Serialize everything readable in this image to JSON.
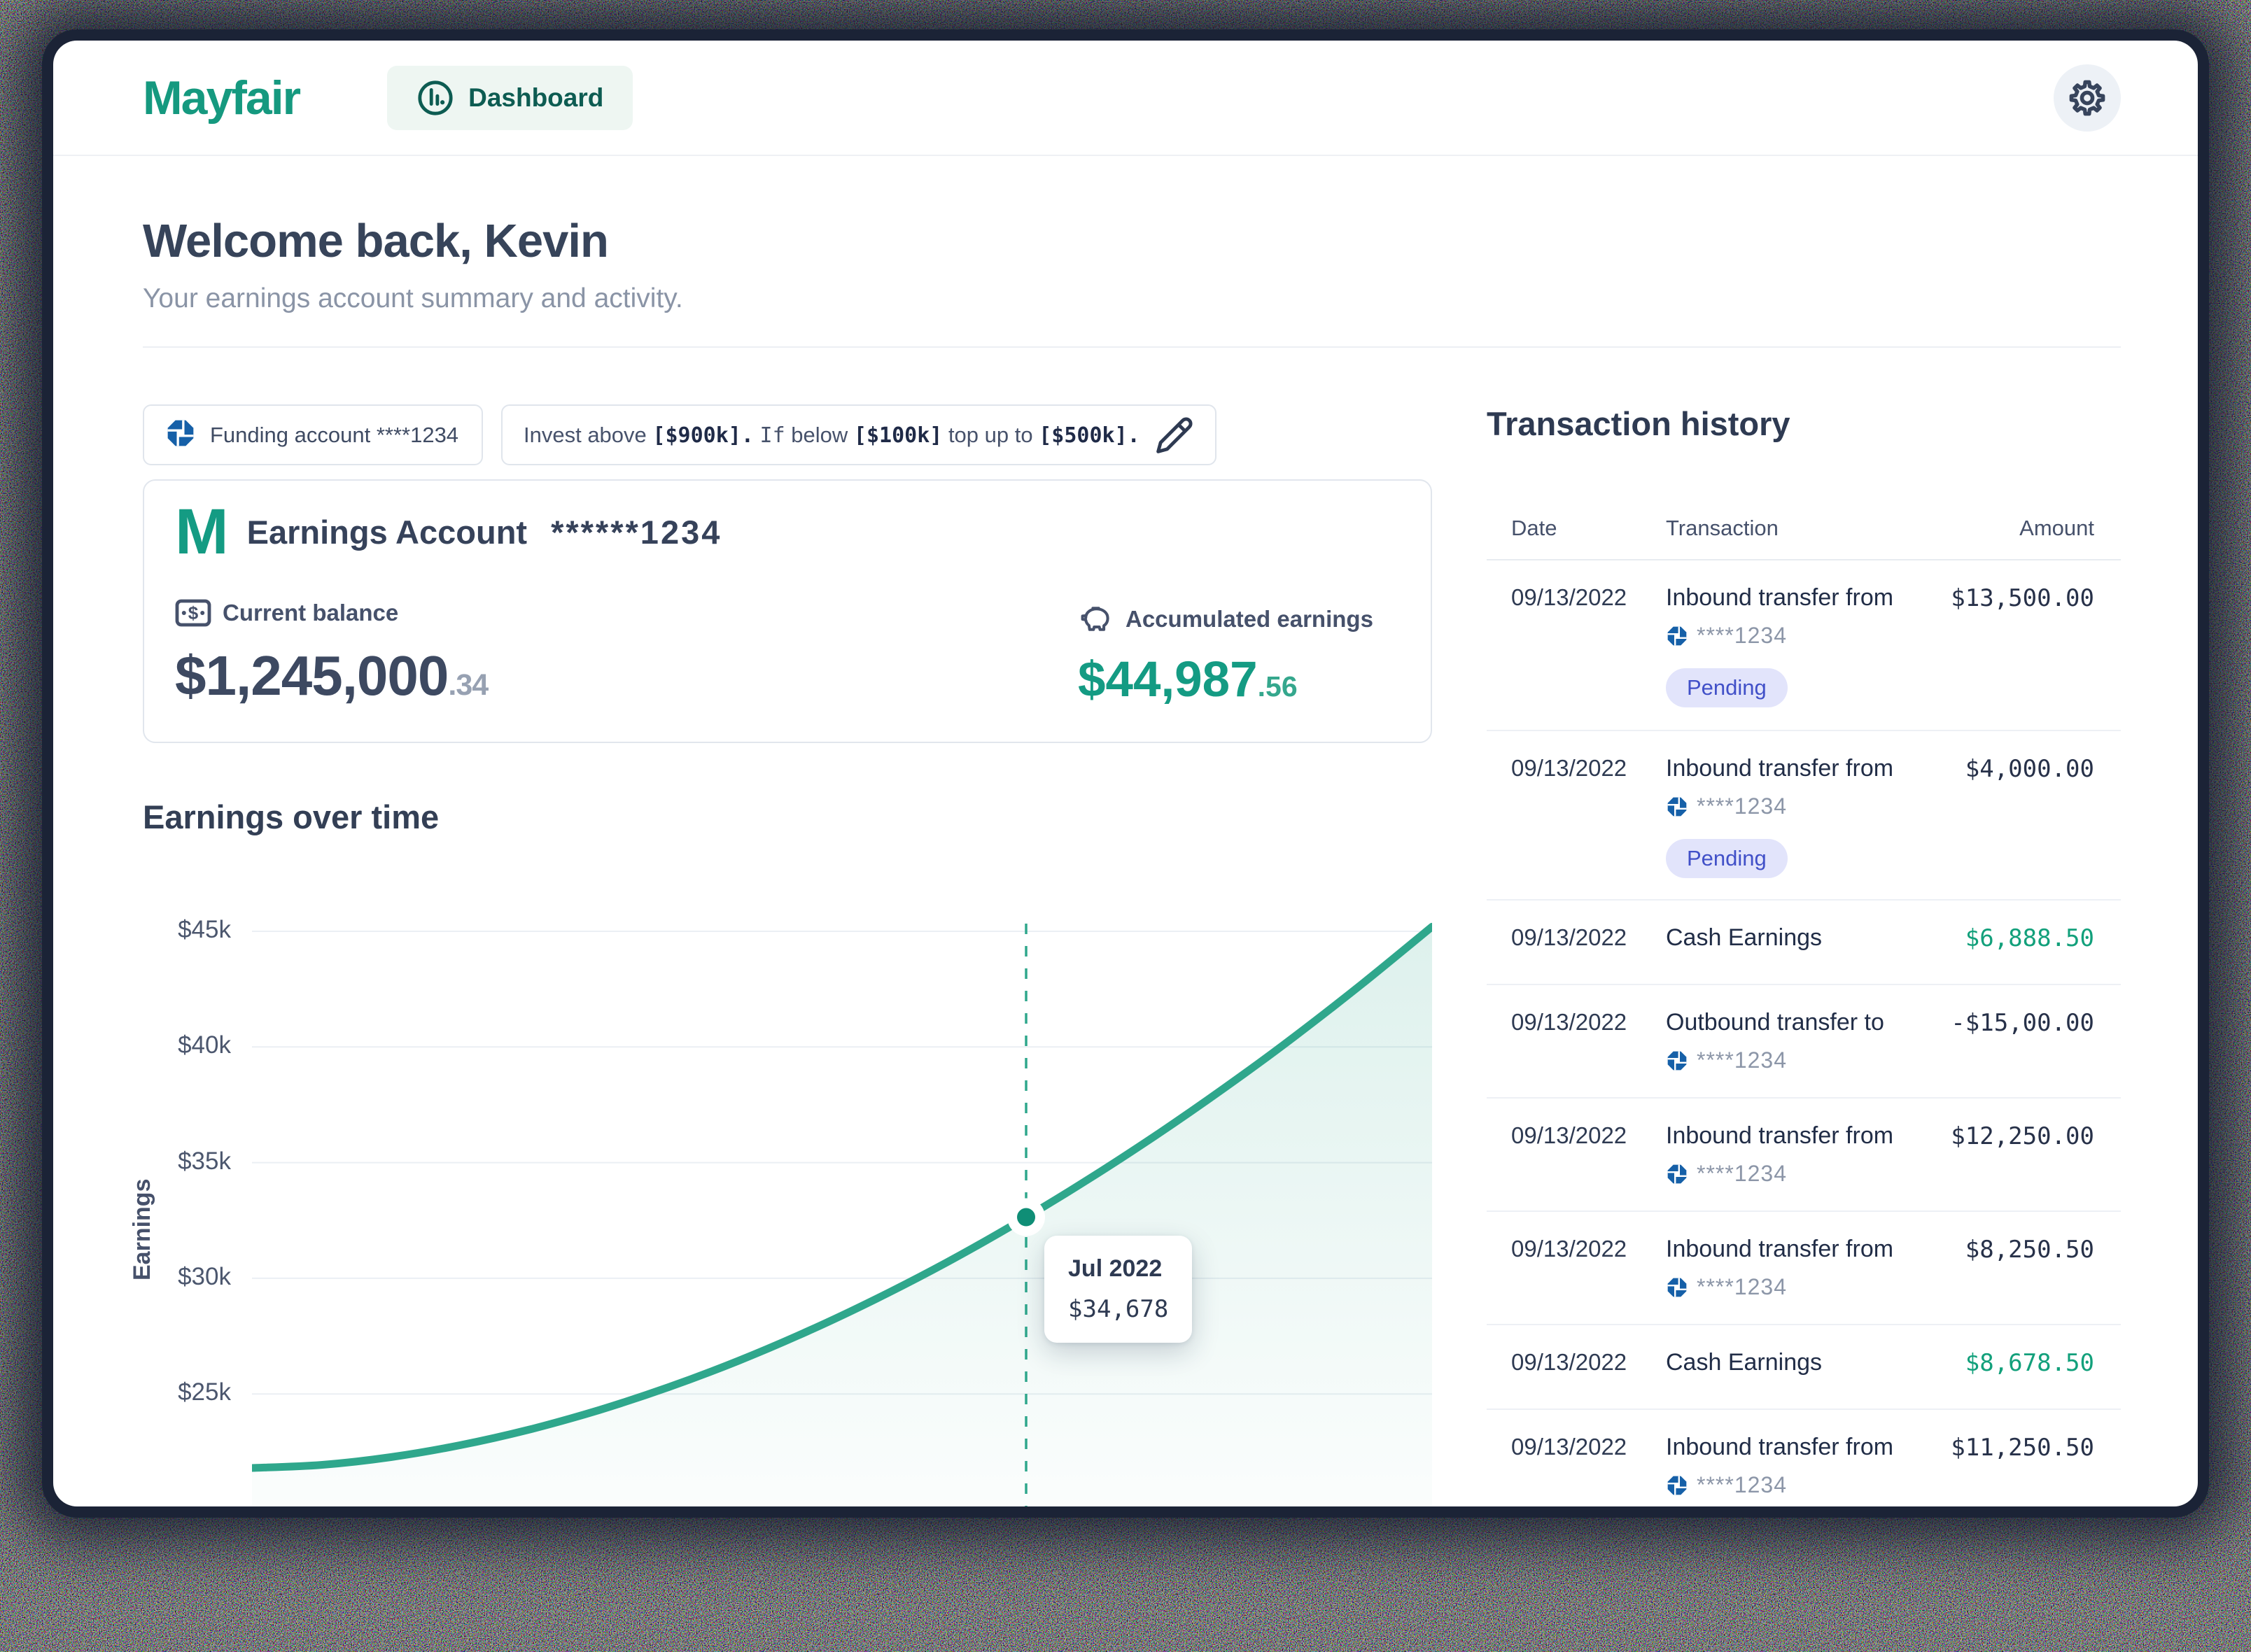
{
  "header": {
    "logo": "Mayfair",
    "nav_label": "Dashboard"
  },
  "settings": {
    "tooltip": "Settings"
  },
  "welcome": {
    "title": "Welcome back, Kevin",
    "subtitle": "Your earnings account summary and activity."
  },
  "funding_pill": {
    "label": "Funding account ****1234"
  },
  "invest_rule": {
    "segments": [
      {
        "text": "Invest above ",
        "style": "normal"
      },
      {
        "text": "[$900k].",
        "style": "mono-bold"
      },
      {
        "text": " ",
        "style": "normal"
      },
      {
        "text": "If",
        "style": "mono"
      },
      {
        "text": " below ",
        "style": "normal"
      },
      {
        "text": "[$100k]",
        "style": "mono-bold"
      },
      {
        "text": " top up to ",
        "style": "normal"
      },
      {
        "text": "[$500k].",
        "style": "mono-bold"
      }
    ]
  },
  "earnings_card": {
    "logo": "M",
    "title": "Earnings Account",
    "account_mask": "******1234",
    "current_balance_label": "Current balance",
    "current_balance_main": "$1,245,000",
    "current_balance_cents": ".34",
    "accumulated_label": "Accumulated earnings",
    "accumulated_main": "$44,987",
    "accumulated_cents": ".56"
  },
  "chart_section": {
    "title": "Earnings over time"
  },
  "chart_data": {
    "type": "line",
    "title": "Earnings over time",
    "xlabel": "",
    "ylabel": "Earnings",
    "ylim": [
      20000,
      46000
    ],
    "grid": true,
    "yticks": [
      {
        "label": "$45k",
        "value": 45000
      },
      {
        "label": "$40k",
        "value": 40000
      },
      {
        "label": "$35k",
        "value": 35000
      },
      {
        "label": "$30k",
        "value": 30000
      },
      {
        "label": "$25k",
        "value": 25000
      }
    ],
    "series_name": "Earnings",
    "points": [
      [
        0,
        21800
      ],
      [
        0.0588,
        21932
      ],
      [
        0.1176,
        22269
      ],
      [
        0.1765,
        22785
      ],
      [
        0.2353,
        23464
      ],
      [
        0.2941,
        24302
      ],
      [
        0.3529,
        25291
      ],
      [
        0.4118,
        26426
      ],
      [
        0.4706,
        27704
      ],
      [
        0.5294,
        29122
      ],
      [
        0.5882,
        30671
      ],
      [
        0.6471,
        32368
      ],
      [
        0.7059,
        34188
      ],
      [
        0.7647,
        36135
      ],
      [
        0.8235,
        38208
      ],
      [
        0.8824,
        40410
      ],
      [
        0.9412,
        42747
      ],
      [
        1,
        45200
      ]
    ],
    "highlight": {
      "t": 0.656,
      "label": "Jul 2022",
      "value": 34678,
      "value_label": "$34,678"
    },
    "line_color": "#2FA78C",
    "fill_color_top": "rgba(47,167,140,0.16)",
    "fill_color_bottom": "rgba(47,167,140,0.02)"
  },
  "transactions": {
    "title": "Transaction history",
    "columns": {
      "date": "Date",
      "transaction": "Transaction",
      "amount": "Amount"
    },
    "rows": [
      {
        "date": "09/13/2022",
        "title": "Inbound transfer from",
        "account": "****1234",
        "badge": "Pending",
        "amount": "$13,500.00",
        "amount_color": "default",
        "variant": "badge"
      },
      {
        "date": "09/13/2022",
        "title": "Inbound transfer from",
        "account": "****1234",
        "badge": "Pending",
        "amount": "$4,000.00",
        "amount_color": "default",
        "variant": "badge"
      },
      {
        "date": "09/13/2022",
        "title": "Cash Earnings",
        "account": "",
        "badge": "",
        "amount": "$6,888.50",
        "amount_color": "green",
        "variant": "simple"
      },
      {
        "date": "09/13/2022",
        "title": "Outbound transfer to",
        "account": "****1234",
        "badge": "",
        "amount": "-$15,00.00",
        "amount_color": "default",
        "variant": "sub"
      },
      {
        "date": "09/13/2022",
        "title": "Inbound transfer from",
        "account": "****1234",
        "badge": "",
        "amount": "$12,250.00",
        "amount_color": "default",
        "variant": "sub"
      },
      {
        "date": "09/13/2022",
        "title": "Inbound transfer from",
        "account": "****1234",
        "badge": "",
        "amount": "$8,250.50",
        "amount_color": "default",
        "variant": "sub"
      },
      {
        "date": "09/13/2022",
        "title": "Cash Earnings",
        "account": "",
        "badge": "",
        "amount": "$8,678.50",
        "amount_color": "green",
        "variant": "simple"
      },
      {
        "date": "09/13/2022",
        "title": "Inbound transfer from",
        "account": "****1234",
        "badge": "",
        "amount": "$11,250.50",
        "amount_color": "default",
        "variant": "sub"
      }
    ]
  },
  "colors": {
    "brand_teal": "#15997F",
    "teal_dark_text": "#0D5C52",
    "chart_line": "#2FA78C",
    "chase_blue": "#1660A8",
    "badge_bg": "#E2E4FB",
    "badge_text": "#4150C8",
    "positive_amount": "#12A07B",
    "heading": "#37445A",
    "frame_navy": "#1B2336"
  }
}
